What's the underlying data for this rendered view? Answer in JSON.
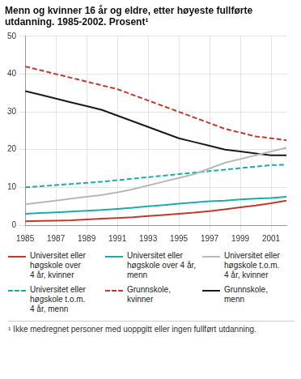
{
  "chart_data": {
    "type": "line",
    "title": "Menn og kvinner 16 år og eldre, etter høyeste fullførte\nutdanning. 1985-2002. Prosent¹",
    "annotations": [
      "¹ Ikke medregnet personer med uoppgitt eller ingen fullført utdanning."
    ],
    "x": [
      1985,
      1986,
      1987,
      1988,
      1989,
      1990,
      1991,
      1992,
      1993,
      1994,
      1995,
      1996,
      1997,
      1998,
      1999,
      2000,
      2001,
      2002
    ],
    "series": [
      {
        "name": "Universitet eller\nhøgskole over\n4 år, kvinner",
        "color": "#c0392b",
        "line_style": "solid",
        "values": [
          1.0,
          1.1,
          1.2,
          1.3,
          1.5,
          1.7,
          1.9,
          2.1,
          2.4,
          2.7,
          3.0,
          3.3,
          3.7,
          4.2,
          4.7,
          5.2,
          5.8,
          6.5
        ]
      },
      {
        "name": "Universitet eller\nhøgskole over 4 år,\nmenn",
        "color": "#1aada8",
        "line_style": "solid",
        "values": [
          3.0,
          3.2,
          3.4,
          3.6,
          3.8,
          4.0,
          4.3,
          4.6,
          5.0,
          5.3,
          5.7,
          6.0,
          6.3,
          6.5,
          6.8,
          7.0,
          7.2,
          7.5
        ]
      },
      {
        "name": "Universitet eller\nhøgskole t.o.m.\n4 år, kvinner",
        "color": "#b8b8b8",
        "line_style": "solid",
        "values": [
          5.5,
          6.0,
          6.5,
          7.0,
          7.5,
          8.0,
          8.7,
          9.5,
          10.5,
          11.5,
          12.5,
          13.5,
          15.0,
          16.5,
          17.5,
          18.5,
          19.5,
          20.5
        ]
      },
      {
        "name": "Universitet eller\nhøgskole t.o.m.\n4 år, menn",
        "color": "#1aada8",
        "line_style": "dashed",
        "values": [
          10.0,
          10.3,
          10.6,
          10.9,
          11.2,
          11.5,
          11.9,
          12.3,
          12.7,
          13.1,
          13.5,
          13.9,
          14.3,
          14.7,
          15.1,
          15.5,
          15.9,
          16.0
        ]
      },
      {
        "name": "Grunnskole,\nkvinner",
        "color": "#c0392b",
        "line_style": "dashed",
        "values": [
          42,
          41,
          40,
          39,
          38,
          37,
          36,
          34.5,
          33,
          31.5,
          30,
          28.5,
          27,
          25.5,
          24.5,
          23.5,
          23,
          22.5
        ]
      },
      {
        "name": "Grunnskole,\nmenn",
        "color": "#1a1a1a",
        "line_style": "solid",
        "values": [
          35.5,
          34.5,
          33.5,
          32.5,
          31.5,
          30.5,
          29,
          27.5,
          26,
          24.5,
          23,
          22,
          21,
          20,
          19.5,
          19,
          18.5,
          18.5
        ]
      }
    ],
    "xlim": [
      1985,
      2002
    ],
    "xticks": [
      1985,
      1987,
      1989,
      1991,
      1993,
      1995,
      1997,
      1999,
      2001
    ],
    "ylim": [
      0,
      50
    ],
    "yticks": [
      0,
      10,
      20,
      30,
      40,
      50
    ],
    "grid": true,
    "legend": "bottom"
  }
}
